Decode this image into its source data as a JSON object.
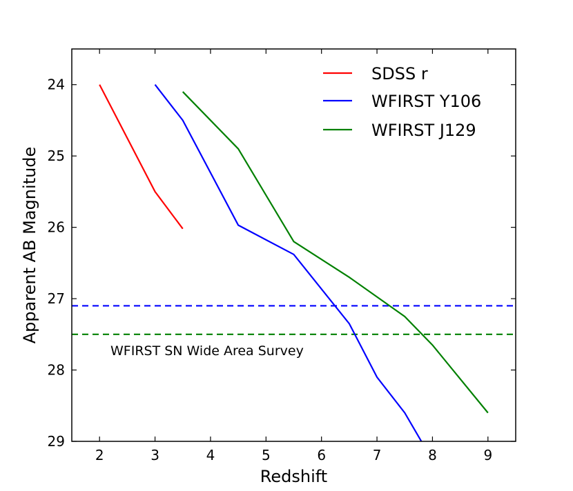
{
  "chart_data": {
    "type": "line",
    "title": "",
    "xlabel": "Redshift",
    "ylabel": "Apparent AB Magnitude",
    "xlim": [
      1.5,
      9.5
    ],
    "ylim": [
      29,
      23.5
    ],
    "y_inverted": true,
    "xticks": [
      2,
      3,
      4,
      5,
      6,
      7,
      8,
      9
    ],
    "yticks": [
      24,
      25,
      26,
      27,
      28,
      29
    ],
    "grid": false,
    "legend_position": "top-right",
    "series": [
      {
        "name": "SDSS r",
        "color": "#ff0000",
        "x": [
          2,
          3,
          3.5
        ],
        "y": [
          24.0,
          25.5,
          26.02
        ]
      },
      {
        "name": "WFIRST Y106",
        "color": "#0000ff",
        "x": [
          3,
          3.5,
          4.5,
          5.5,
          6.5,
          7,
          7.5,
          7.8
        ],
        "y": [
          24.0,
          24.5,
          25.97,
          26.38,
          27.35,
          28.1,
          28.6,
          29.0
        ]
      },
      {
        "name": "WFIRST J129",
        "color": "#008000",
        "x": [
          3.5,
          4.5,
          5.5,
          6.5,
          7.5,
          8,
          9
        ],
        "y": [
          24.1,
          24.9,
          26.2,
          26.7,
          27.25,
          27.65,
          28.6
        ]
      }
    ],
    "reference_lines": [
      {
        "y": 27.1,
        "color": "#0000ff",
        "style": "dashed"
      },
      {
        "y": 27.5,
        "color": "#008000",
        "style": "dashed"
      }
    ],
    "annotation": {
      "text": "WFIRST SN Wide Area Survey",
      "x": 1.7,
      "y": 27.75
    }
  }
}
